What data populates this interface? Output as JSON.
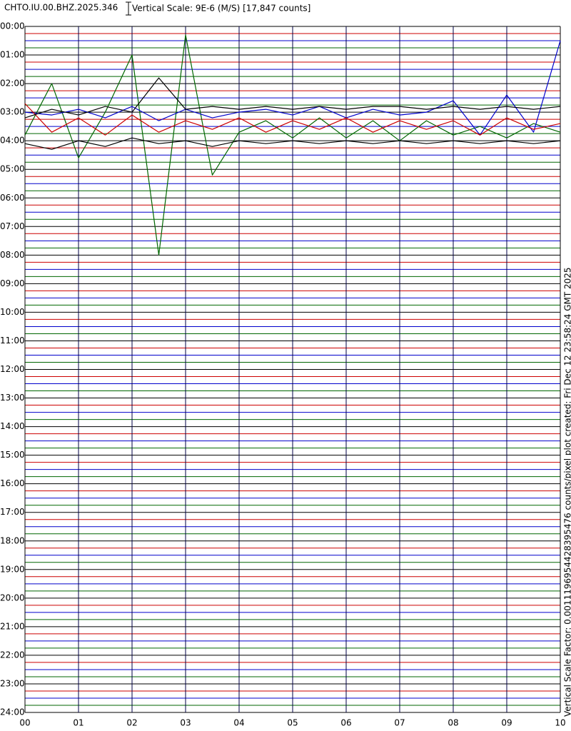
{
  "chart_data": {
    "type": "helicorder",
    "title": "CHTO.IU.00.BHZ.2025.346",
    "scale_label": "Vertical Scale: 9E-6 (M/S) [17,847 counts]",
    "side_label": "Vertical Scale Factor: 0.0011196954428395476 counts/pixel plot created: Fri Dec 12 23:58:24 GMT 2025",
    "xlim": [
      0,
      10
    ],
    "xticks": [
      {
        "value": 0,
        "label": "00"
      },
      {
        "value": 1,
        "label": "01"
      },
      {
        "value": 2,
        "label": "02"
      },
      {
        "value": 3,
        "label": "03"
      },
      {
        "value": 4,
        "label": "04"
      },
      {
        "value": 5,
        "label": "05"
      },
      {
        "value": 6,
        "label": "06"
      },
      {
        "value": 7,
        "label": "07"
      },
      {
        "value": 8,
        "label": "08"
      },
      {
        "value": 9,
        "label": "09"
      },
      {
        "value": 10,
        "label": "10"
      }
    ],
    "ylim": [
      0,
      24
    ],
    "yticks": [
      {
        "value": 0,
        "label": "00:00"
      },
      {
        "value": 1,
        "label": "01:00"
      },
      {
        "value": 2,
        "label": "02:00"
      },
      {
        "value": 3,
        "label": "03:00"
      },
      {
        "value": 4,
        "label": "04:00"
      },
      {
        "value": 5,
        "label": "05:00"
      },
      {
        "value": 6,
        "label": "06:00"
      },
      {
        "value": 7,
        "label": "07:00"
      },
      {
        "value": 8,
        "label": "08:00"
      },
      {
        "value": 9,
        "label": "09:00"
      },
      {
        "value": 10,
        "label": "10:00"
      },
      {
        "value": 11,
        "label": "11:00"
      },
      {
        "value": 12,
        "label": "12:00"
      },
      {
        "value": 13,
        "label": "13:00"
      },
      {
        "value": 14,
        "label": "14:00"
      },
      {
        "value": 15,
        "label": "15:00"
      },
      {
        "value": 16,
        "label": "16:00"
      },
      {
        "value": 17,
        "label": "17:00"
      },
      {
        "value": 18,
        "label": "18:00"
      },
      {
        "value": 19,
        "label": "19:00"
      },
      {
        "value": 20,
        "label": "20:00"
      },
      {
        "value": 21,
        "label": "21:00"
      },
      {
        "value": 22,
        "label": "22:00"
      },
      {
        "value": 23,
        "label": "23:00"
      },
      {
        "value": 24,
        "label": "24:00"
      }
    ],
    "rows_per_hour": 4,
    "trace_colors": [
      "#000000",
      "#cc0000",
      "#0000cc",
      "#006600"
    ],
    "grid_color": "#000044",
    "x": [
      0,
      0.5,
      1,
      1.5,
      2,
      2.5,
      3,
      3.5,
      4,
      4.5,
      5,
      5.5,
      6,
      6.5,
      7,
      7.5,
      8,
      8.5,
      9,
      9.5,
      10
    ],
    "series": [
      {
        "color": "#006600",
        "values": [
          3.8,
          2.0,
          4.6,
          3.0,
          1.0,
          8.0,
          0.3,
          5.2,
          3.7,
          3.3,
          3.9,
          3.2,
          3.9,
          3.3,
          4.0,
          3.3,
          3.8,
          3.5,
          3.9,
          3.4,
          3.7
        ]
      },
      {
        "color": "#0000cc",
        "values": [
          3.0,
          3.1,
          2.9,
          3.2,
          2.8,
          3.3,
          2.9,
          3.2,
          3.0,
          2.9,
          3.1,
          2.8,
          3.2,
          2.9,
          3.1,
          3.0,
          2.6,
          3.8,
          2.4,
          3.7,
          0.5
        ]
      },
      {
        "color": "#cc0000",
        "values": [
          2.7,
          3.7,
          3.2,
          3.8,
          3.1,
          3.7,
          3.3,
          3.6,
          3.2,
          3.7,
          3.3,
          3.6,
          3.2,
          3.7,
          3.3,
          3.6,
          3.3,
          3.8,
          3.2,
          3.6,
          3.4
        ]
      },
      {
        "color": "#000000",
        "values": [
          3.2,
          2.9,
          3.1,
          2.8,
          3.0,
          1.8,
          2.9,
          2.8,
          2.9,
          2.8,
          2.9,
          2.8,
          2.9,
          2.8,
          2.8,
          2.9,
          2.8,
          2.9,
          2.8,
          2.9,
          2.8
        ]
      },
      {
        "color": "#000000",
        "values": [
          4.1,
          4.3,
          4.0,
          4.2,
          3.9,
          4.1,
          4.0,
          4.2,
          4.0,
          4.1,
          4.0,
          4.1,
          4.0,
          4.1,
          4.0,
          4.1,
          4.0,
          4.1,
          4.0,
          4.1,
          4.0
        ]
      }
    ]
  }
}
